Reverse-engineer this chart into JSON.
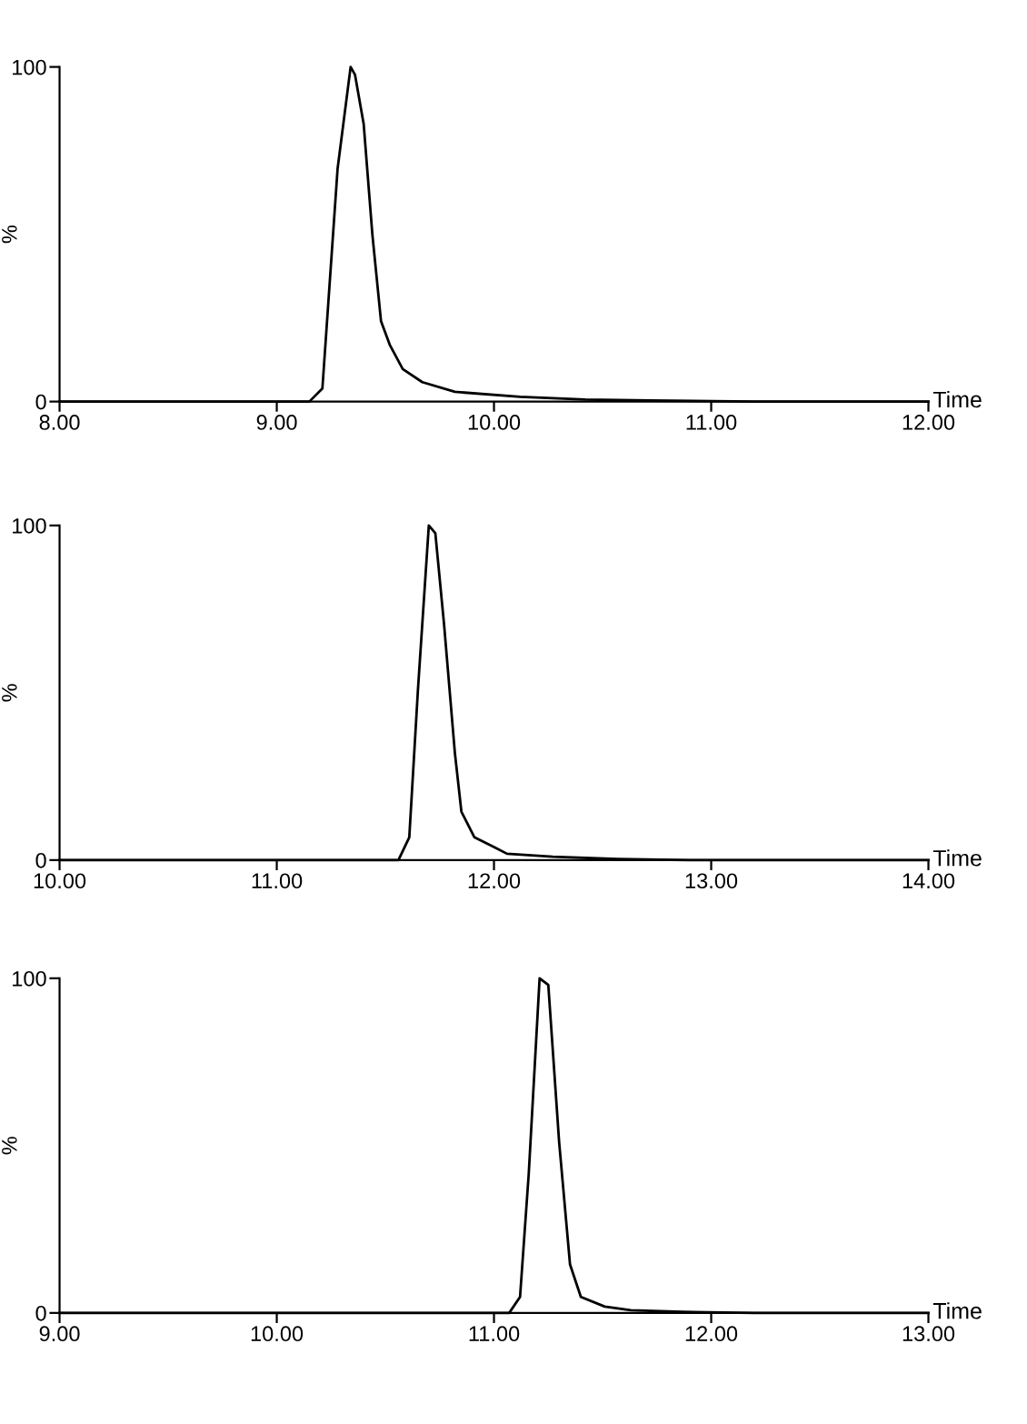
{
  "chart_data": [
    {
      "type": "line",
      "xlabel": "Time",
      "ylabel": "%",
      "xlim": [
        8.0,
        12.0
      ],
      "ylim": [
        0,
        100
      ],
      "grid": false,
      "marker": "none",
      "line_style": "solid",
      "xticks": [
        {
          "value": 8,
          "label": "8.00"
        },
        {
          "value": 9,
          "label": "9.00"
        },
        {
          "value": 10,
          "label": "10.00"
        },
        {
          "value": 11,
          "label": "11.00"
        },
        {
          "value": 12,
          "label": "12.00"
        }
      ],
      "yticks": [
        0,
        100
      ],
      "series": [
        {
          "color": "#000000",
          "x": [
            8.0,
            9.15,
            9.21,
            9.28,
            9.34,
            9.36,
            9.4,
            9.44,
            9.48,
            9.52,
            9.58,
            9.67,
            9.82,
            10.12,
            10.42,
            10.72,
            11.2,
            12.0
          ],
          "values": [
            0,
            0,
            3.9,
            69.6,
            100,
            97.7,
            83,
            50,
            24,
            17,
            9.7,
            5.8,
            2.9,
            1.4,
            0.6,
            0.3,
            0,
            0
          ]
        }
      ]
    },
    {
      "type": "line",
      "xlabel": "Time",
      "ylabel": "%",
      "xlim": [
        10.0,
        14.0
      ],
      "ylim": [
        0,
        100
      ],
      "grid": false,
      "marker": "none",
      "line_style": "solid",
      "xticks": [
        {
          "value": 10,
          "label": "10.00"
        },
        {
          "value": 11,
          "label": "11.00"
        },
        {
          "value": 12,
          "label": "12.00"
        },
        {
          "value": 13,
          "label": "13.00"
        },
        {
          "value": 14,
          "label": "14.00"
        }
      ],
      "yticks": [
        0,
        100
      ],
      "series": [
        {
          "color": "#000000",
          "x": [
            10.0,
            11.56,
            11.61,
            11.65,
            11.7,
            11.73,
            11.77,
            11.82,
            11.85,
            11.91,
            12.0,
            12.06,
            12.27,
            12.57,
            12.9,
            14.0
          ],
          "values": [
            0,
            0,
            6.8,
            51,
            100,
            97.7,
            70.6,
            32,
            14.5,
            6.8,
            3.9,
            1.9,
            1,
            0.3,
            0,
            0
          ]
        }
      ]
    },
    {
      "type": "line",
      "xlabel": "Time",
      "ylabel": "%",
      "xlim": [
        9.0,
        13.0
      ],
      "ylim": [
        0,
        100
      ],
      "grid": false,
      "marker": "none",
      "line_style": "solid",
      "xticks": [
        {
          "value": 9,
          "label": "9.00"
        },
        {
          "value": 10,
          "label": "10.00"
        },
        {
          "value": 11,
          "label": "11.00"
        },
        {
          "value": 12,
          "label": "12.00"
        },
        {
          "value": 13,
          "label": "13.00"
        }
      ],
      "yticks": [
        0,
        100
      ],
      "series": [
        {
          "color": "#000000",
          "x": [
            9.0,
            11.07,
            11.12,
            11.16,
            11.21,
            11.25,
            11.3,
            11.35,
            11.4,
            11.51,
            11.63,
            11.87,
            12.2,
            13.0
          ],
          "values": [
            0,
            0,
            4.8,
            41.6,
            100,
            98,
            51,
            14.5,
            4.8,
            1.9,
            0.8,
            0.3,
            0,
            0
          ]
        }
      ]
    }
  ]
}
